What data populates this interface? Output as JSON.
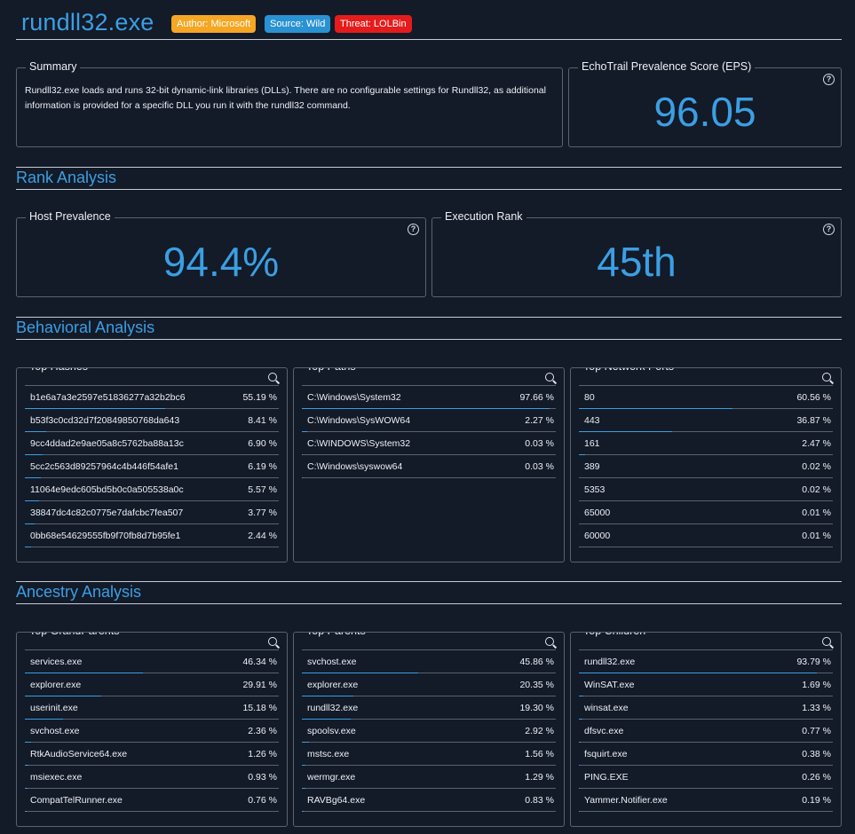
{
  "header": {
    "title": "rundll32.exe",
    "badges": {
      "author": "Author: Microsoft",
      "source": "Source: Wild",
      "threat": "Threat: LOLBin"
    }
  },
  "summary": {
    "legend": "Summary",
    "text": "Rundll32.exe loads and runs 32-bit dynamic-link libraries (DLLs). There are no configurable settings for Rundll32, as additional information is provided for a specific DLL you run it with the rundll32 command."
  },
  "eps": {
    "legend": "EchoTrail Prevalence Score (EPS)",
    "value": "96.05"
  },
  "sections": {
    "rank": "Rank Analysis",
    "behavioral": "Behavioral Analysis",
    "ancestry": "Ancestry Analysis"
  },
  "host_prevalence": {
    "legend": "Host Prevalence",
    "value": "94.4%"
  },
  "execution_rank": {
    "legend": "Execution Rank",
    "value": "45th"
  },
  "icons": {
    "help": "question-circle-icon",
    "search": "search-icon"
  },
  "colors": {
    "accent": "#3b9fe3",
    "author_badge": "#f5a623",
    "source_badge": "#2a92d2",
    "threat_badge": "#e51c1c",
    "background": "#131a28"
  },
  "lists": {
    "top_hashes": {
      "legend": "Top Hashes",
      "rows": [
        {
          "name": "b1e6a7a3e2597e51836277a32b2bc6",
          "pct": "55.19 %",
          "share": 0.5519
        },
        {
          "name": "b53f3c0cd32d7f20849850768da643",
          "pct": "8.41 %",
          "share": 0.0841
        },
        {
          "name": "9cc4ddad2e9ae05a8c5762ba88a13c",
          "pct": "6.90 %",
          "share": 0.069
        },
        {
          "name": "5cc2c563d89257964c4b446f54afe1",
          "pct": "6.19 %",
          "share": 0.0619
        },
        {
          "name": "11064e9edc605bd5b0c0a505538a0c",
          "pct": "5.57 %",
          "share": 0.0557
        },
        {
          "name": "38847dc4c82c0775e7dafcbc7fea507",
          "pct": "3.77 %",
          "share": 0.0377
        },
        {
          "name": "0bb68e54629555fb9f70fb8d7b95fe1",
          "pct": "2.44 %",
          "share": 0.0244
        },
        {
          "name": "",
          "pct": "",
          "share": 0
        }
      ]
    },
    "top_paths": {
      "legend": "Top Paths",
      "rows": [
        {
          "name": "C:\\Windows\\System32",
          "pct": "97.66 %",
          "share": 0.9766
        },
        {
          "name": "C:\\Windows\\SysWOW64",
          "pct": "2.27 %",
          "share": 0.0227
        },
        {
          "name": "C:\\WINDOWS\\System32",
          "pct": "0.03 %",
          "share": 0.0003
        },
        {
          "name": "C:\\Windows\\syswow64",
          "pct": "0.03 %",
          "share": 0.0003
        }
      ]
    },
    "top_network_ports": {
      "legend": "Top Network Ports",
      "rows": [
        {
          "name": "80",
          "pct": "60.56 %",
          "share": 0.6056
        },
        {
          "name": "443",
          "pct": "36.87 %",
          "share": 0.3687
        },
        {
          "name": "161",
          "pct": "2.47 %",
          "share": 0.0247
        },
        {
          "name": "389",
          "pct": "0.02 %",
          "share": 0.0002
        },
        {
          "name": "5353",
          "pct": "0.02 %",
          "share": 0.0002
        },
        {
          "name": "65000",
          "pct": "0.01 %",
          "share": 0.0001
        },
        {
          "name": "60000",
          "pct": "0.01 %",
          "share": 0.0001
        },
        {
          "name": "",
          "pct": "",
          "share": 0
        }
      ]
    },
    "top_grandparents": {
      "legend": "Top GrandParents",
      "rows": [
        {
          "name": "services.exe",
          "pct": "46.34 %",
          "share": 0.4634
        },
        {
          "name": "explorer.exe",
          "pct": "29.91 %",
          "share": 0.2991
        },
        {
          "name": "userinit.exe",
          "pct": "15.18 %",
          "share": 0.1518
        },
        {
          "name": "svchost.exe",
          "pct": "2.36 %",
          "share": 0.0236
        },
        {
          "name": "RtkAudioService64.exe",
          "pct": "1.26 %",
          "share": 0.0126
        },
        {
          "name": "msiexec.exe",
          "pct": "0.93 %",
          "share": 0.0093
        },
        {
          "name": "CompatTelRunner.exe",
          "pct": "0.76 %",
          "share": 0.0076
        },
        {
          "name": "",
          "pct": "",
          "share": 0
        }
      ]
    },
    "top_parents": {
      "legend": "Top Parents",
      "rows": [
        {
          "name": "svchost.exe",
          "pct": "45.86 %",
          "share": 0.4586
        },
        {
          "name": "explorer.exe",
          "pct": "20.35 %",
          "share": 0.2035
        },
        {
          "name": "rundll32.exe",
          "pct": "19.30 %",
          "share": 0.193
        },
        {
          "name": "spoolsv.exe",
          "pct": "2.92 %",
          "share": 0.0292
        },
        {
          "name": "mstsc.exe",
          "pct": "1.56 %",
          "share": 0.0156
        },
        {
          "name": "wermgr.exe",
          "pct": "1.29 %",
          "share": 0.0129
        },
        {
          "name": "RAVBg64.exe",
          "pct": "0.83 %",
          "share": 0.0083
        },
        {
          "name": "",
          "pct": "",
          "share": 0
        }
      ]
    },
    "top_children": {
      "legend": "Top Children",
      "rows": [
        {
          "name": "rundll32.exe",
          "pct": "93.79 %",
          "share": 0.9379
        },
        {
          "name": "WinSAT.exe",
          "pct": "1.69 %",
          "share": 0.0169
        },
        {
          "name": "winsat.exe",
          "pct": "1.33 %",
          "share": 0.0133
        },
        {
          "name": "dfsvc.exe",
          "pct": "0.77 %",
          "share": 0.0077
        },
        {
          "name": "fsquirt.exe",
          "pct": "0.38 %",
          "share": 0.0038
        },
        {
          "name": "PING.EXE",
          "pct": "0.26 %",
          "share": 0.0026
        },
        {
          "name": "Yammer.Notifier.exe",
          "pct": "0.19 %",
          "share": 0.0019
        },
        {
          "name": "",
          "pct": "",
          "share": 0
        }
      ]
    }
  }
}
